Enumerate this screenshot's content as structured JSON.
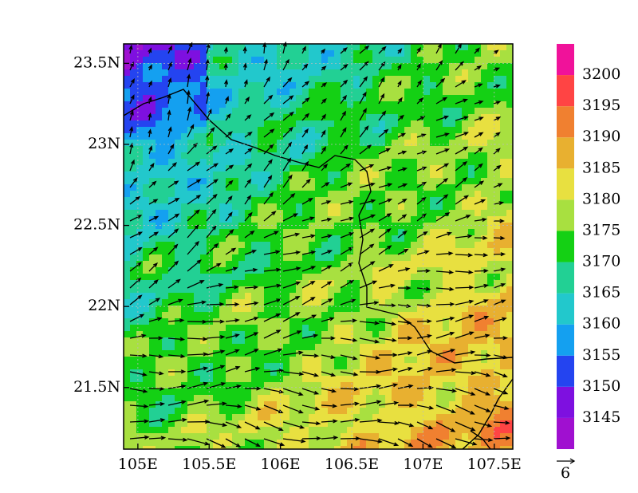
{
  "chart_data": {
    "type": "map",
    "xlim": [
      104.9,
      107.63
    ],
    "ylim": [
      21.12,
      23.62
    ],
    "xticks": [
      {
        "value": 105,
        "label": "105E"
      },
      {
        "value": 105.5,
        "label": "105.5E"
      },
      {
        "value": 106,
        "label": "106E"
      },
      {
        "value": 106.5,
        "label": "106.5E"
      },
      {
        "value": 107,
        "label": "107E"
      },
      {
        "value": 107.5,
        "label": "107.5E"
      }
    ],
    "yticks": [
      {
        "value": 21.5,
        "label": "21.5N"
      },
      {
        "value": 22,
        "label": "22N"
      },
      {
        "value": 22.5,
        "label": "22.5N"
      },
      {
        "value": 23,
        "label": "23N"
      },
      {
        "value": 23.5,
        "label": "23.5N"
      }
    ],
    "colorbar": {
      "levels": [
        3145,
        3150,
        3155,
        3160,
        3165,
        3170,
        3175,
        3180,
        3185,
        3190,
        3195,
        3200
      ],
      "colors": [
        "#a010d0",
        "#7e10e0",
        "#2444f0",
        "#14a0f0",
        "#22c8cc",
        "#22d094",
        "#14d014",
        "#a8e040",
        "#e8e040",
        "#e8b030",
        "#f08030",
        "#ff4444",
        "#f0129a"
      ]
    },
    "reference_vector": 6
  }
}
